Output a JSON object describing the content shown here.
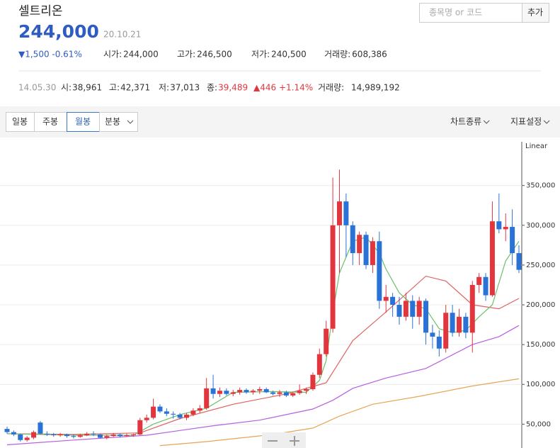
{
  "header": {
    "title": "셀트리온",
    "price": "244,000",
    "date": "20.10.21",
    "change": "▼1,500 -0.61%",
    "stats": [
      {
        "label": "시가:",
        "value": "244,000"
      },
      {
        "label": "고가:",
        "value": "246,500"
      },
      {
        "label": "저가:",
        "value": "240,500"
      },
      {
        "label": "거래량:",
        "value": "608,386"
      }
    ]
  },
  "history": {
    "date": "14.05.30",
    "stats": [
      {
        "label": "시:",
        "value": "38,961"
      },
      {
        "label": "고:",
        "value": "42,371"
      },
      {
        "label": "저:",
        "value": "37,013"
      },
      {
        "label": "종:",
        "value": "39,489"
      }
    ],
    "change": "▲446 +1.14%",
    "volume": {
      "label": "거래량:",
      "value": "14,989,192"
    }
  },
  "search": {
    "placeholder": "종목명 or 코드",
    "button": "추가"
  },
  "tabs": {
    "periods": [
      "일봉",
      "주봉",
      "월봉",
      "분봉"
    ],
    "selected": 2,
    "tools": [
      "차트종류",
      "지표설정"
    ]
  },
  "chart_data": {
    "type": "candlestick",
    "scale_label": "Linear",
    "categories": [
      null,
      null,
      null,
      null,
      null,
      null,
      null,
      null,
      null,
      null,
      null,
      null,
      null,
      null,
      null,
      null,
      null,
      null,
      null,
      null,
      null,
      null,
      null,
      null,
      null,
      null,
      null,
      null,
      null,
      null,
      null,
      null,
      null,
      null,
      null,
      null,
      null,
      null,
      null,
      null,
      null,
      null,
      null,
      null,
      null,
      null,
      null,
      null,
      null,
      null,
      null,
      null,
      null,
      null,
      null,
      null,
      null,
      null,
      null,
      null,
      null,
      null,
      null,
      null,
      null,
      null,
      null,
      null,
      null,
      null,
      null,
      null,
      null,
      null,
      null,
      null,
      null,
      null
    ],
    "open": [
      44000,
      40000,
      37000,
      30000,
      33000,
      52000,
      38000,
      37000,
      36000,
      37000,
      35000,
      34000,
      36000,
      38000,
      37000,
      33000,
      35000,
      37000,
      35000,
      36000,
      37000,
      55000,
      58000,
      72000,
      66000,
      63000,
      62000,
      58000,
      62000,
      67000,
      70000,
      95000,
      88000,
      92000,
      88000,
      90000,
      93000,
      90000,
      92000,
      94000,
      90000,
      88000,
      90000,
      86000,
      89000,
      92000,
      94000,
      112000,
      138000,
      170000,
      300000,
      330000,
      300000,
      265000,
      288000,
      250000,
      280000,
      205000,
      210000,
      200000,
      185000,
      205000,
      185000,
      205000,
      165000,
      160000,
      145000,
      190000,
      165000,
      185000,
      165000,
      225000,
      235000,
      212000,
      305000,
      295000,
      298000,
      265000
    ],
    "high": [
      47000,
      42000,
      38000,
      35000,
      42000,
      54000,
      41000,
      39000,
      39000,
      38000,
      37000,
      38000,
      40000,
      41000,
      38000,
      37000,
      39000,
      38000,
      38000,
      38000,
      58000,
      62000,
      82000,
      75000,
      70000,
      66000,
      64000,
      64000,
      70000,
      74000,
      108000,
      112000,
      96000,
      95000,
      93000,
      96000,
      95000,
      94000,
      97000,
      96000,
      92000,
      93000,
      92000,
      91000,
      100000,
      96000,
      115000,
      145000,
      180000,
      360000,
      370000,
      340000,
      305000,
      292000,
      292000,
      285000,
      292000,
      225000,
      215000,
      210000,
      215000,
      212000,
      210000,
      208000,
      175000,
      168000,
      200000,
      200000,
      195000,
      190000,
      230000,
      240000,
      240000,
      330000,
      340000,
      315000,
      320000,
      275000
    ],
    "low": [
      38000,
      35000,
      28000,
      28000,
      31000,
      37000,
      35000,
      34000,
      34000,
      33000,
      32000,
      33000,
      35000,
      35000,
      32000,
      31000,
      34000,
      33000,
      34000,
      34000,
      36000,
      52000,
      56000,
      64000,
      60000,
      57000,
      56000,
      55000,
      60000,
      64000,
      68000,
      82000,
      84000,
      86000,
      85000,
      87000,
      88000,
      87000,
      88000,
      89000,
      86000,
      84000,
      84000,
      84000,
      87000,
      88000,
      92000,
      108000,
      135000,
      165000,
      240000,
      260000,
      250000,
      250000,
      245000,
      240000,
      195000,
      190000,
      185000,
      175000,
      180000,
      170000,
      175000,
      150000,
      145000,
      135000,
      140000,
      160000,
      160000,
      158000,
      140000,
      215000,
      205000,
      210000,
      290000,
      280000,
      250000,
      240000
    ],
    "close": [
      40000,
      37000,
      30000,
      33000,
      40000,
      38000,
      37000,
      36000,
      37000,
      35000,
      34000,
      36000,
      38000,
      37000,
      33000,
      35000,
      37000,
      35000,
      36000,
      37000,
      55000,
      58000,
      72000,
      66000,
      63000,
      62000,
      58000,
      62000,
      67000,
      70000,
      95000,
      88000,
      92000,
      88000,
      90000,
      93000,
      90000,
      92000,
      94000,
      90000,
      88000,
      90000,
      86000,
      89000,
      92000,
      94000,
      112000,
      138000,
      170000,
      300000,
      330000,
      300000,
      265000,
      288000,
      250000,
      280000,
      205000,
      210000,
      200000,
      185000,
      205000,
      185000,
      205000,
      165000,
      160000,
      145000,
      190000,
      165000,
      185000,
      165000,
      225000,
      235000,
      212000,
      305000,
      295000,
      298000,
      265000,
      244000
    ],
    "up_color": "#e2363f",
    "down_color": "#2b72d6",
    "ma": [
      {
        "color": "#e8a456",
        "x": [
          23,
          30,
          40,
          46,
          50,
          55,
          62,
          70,
          77
        ],
        "values": [
          23000,
          28000,
          37000,
          45000,
          60000,
          75000,
          85000,
          98000,
          107000
        ]
      },
      {
        "color": "#b65fe0",
        "x": [
          0,
          10,
          21,
          31,
          38,
          46,
          49,
          52,
          57,
          63,
          70,
          74,
          77
        ],
        "values": [
          24000,
          30000,
          36000,
          48000,
          55000,
          69000,
          80000,
          95000,
          108000,
          120000,
          150000,
          160000,
          174000
        ]
      },
      {
        "color": "#e06262",
        "x": [
          0,
          10,
          20,
          26,
          34,
          42,
          48,
          52,
          57,
          63,
          66,
          70,
          74,
          77
        ],
        "values": [
          38000,
          37000,
          39000,
          57000,
          75000,
          88000,
          102000,
          155000,
          191000,
          236000,
          230000,
          200000,
          195000,
          208000
        ]
      },
      {
        "color": "#6cc06c",
        "x": [
          0,
          10,
          19,
          22,
          26,
          30,
          34,
          40,
          45,
          47,
          48,
          49,
          50,
          52,
          54,
          56,
          57,
          59,
          61,
          63,
          65,
          67,
          69,
          71,
          73,
          75,
          77
        ],
        "values": [
          38000,
          36000,
          36000,
          50000,
          62000,
          70000,
          90000,
          91000,
          90000,
          105000,
          130000,
          190000,
          240000,
          280000,
          285000,
          265000,
          245000,
          215000,
          200000,
          195000,
          170000,
          165000,
          168000,
          185000,
          200000,
          255000,
          280000
        ]
      }
    ],
    "ylim": [
      20000,
      405000
    ],
    "yticks": [
      {
        "value": 50000,
        "label": "50,000"
      },
      {
        "value": 100000,
        "label": "100,000"
      },
      {
        "value": 150000,
        "label": "150,000"
      },
      {
        "value": 200000,
        "label": "200,000"
      },
      {
        "value": 250000,
        "label": "250,000"
      },
      {
        "value": 300000,
        "label": "300,000"
      },
      {
        "value": 350000,
        "label": "350,000"
      }
    ],
    "grid": true
  }
}
